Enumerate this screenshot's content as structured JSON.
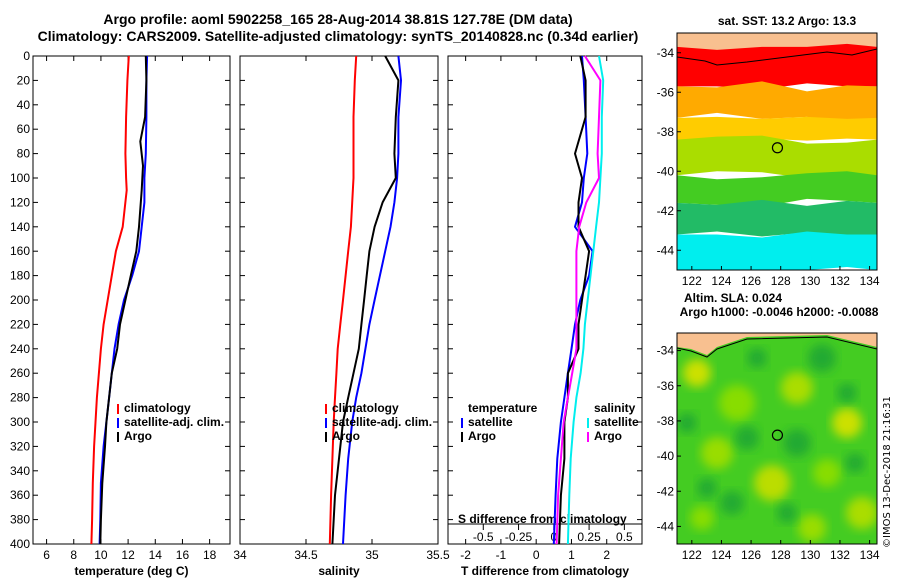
{
  "title": {
    "line1": "Argo profile: aoml 5902258_165 28-Aug-2014 38.81S 127.78E (DM data)",
    "line2": "Climatology: CARS2009. Satellite-adjusted climatology: synTS_20140828.nc (0.34d earlier)"
  },
  "copyright": "©IMOS 13-Dec-2018 21:16:31",
  "colors": {
    "climatology": "#ff0000",
    "satellite": "#0000ff",
    "argo": "#000000",
    "satellite_diff_s": "#00eeee",
    "argo_diff_s": "#ff00ff",
    "land": "#f8c090"
  },
  "chart_data": [
    {
      "type": "line",
      "id": "temperature",
      "xlabel": "temperature (deg C)",
      "ylabel": "",
      "xlim": [
        5,
        19.5
      ],
      "ylim": [
        400,
        0
      ],
      "xticks": [
        6,
        8,
        10,
        12,
        14,
        16,
        18
      ],
      "xtick_labels": [
        "6",
        "8",
        "10",
        "12",
        "14",
        "16",
        "18"
      ],
      "yticks": [
        0,
        20,
        40,
        60,
        80,
        100,
        120,
        140,
        160,
        180,
        200,
        220,
        240,
        260,
        280,
        300,
        320,
        340,
        360,
        380,
        400
      ],
      "ytick_labels": [
        "0",
        "20",
        "40",
        "60",
        "80",
        "100",
        "120",
        "140",
        "160",
        "180",
        "200",
        "220",
        "240",
        "260",
        "280",
        "300",
        "320",
        "340",
        "360",
        "380",
        "400"
      ],
      "legend": [
        "climatology",
        "satellite-adj. clim.",
        "Argo"
      ],
      "legend_position": "lower-right",
      "series": [
        {
          "name": "climatology",
          "color": "#ff0000",
          "x": [
            12.05,
            11.95,
            11.85,
            11.8,
            11.85,
            11.9,
            11.6,
            11.1,
            10.8,
            10.5,
            10.2,
            10.0,
            9.85,
            9.7,
            9.6,
            9.5,
            9.4,
            9.35,
            9.3
          ],
          "y": [
            0,
            20,
            50,
            80,
            100,
            110,
            140,
            160,
            180,
            200,
            220,
            240,
            260,
            280,
            300,
            320,
            350,
            380,
            400
          ]
        },
        {
          "name": "satellite-adj. clim.",
          "color": "#0000ff",
          "x": [
            13.4,
            13.35,
            13.35,
            13.3,
            13.2,
            13.2,
            13.0,
            12.8,
            12.3,
            11.7,
            11.3,
            11.0,
            10.8,
            10.6,
            10.4,
            10.2,
            10.0,
            9.95,
            9.9
          ],
          "y": [
            0,
            20,
            50,
            80,
            100,
            120,
            140,
            160,
            180,
            200,
            220,
            240,
            260,
            280,
            300,
            320,
            350,
            380,
            400
          ]
        },
        {
          "name": "Argo",
          "color": "#000000",
          "x": [
            13.3,
            13.35,
            13.25,
            12.9,
            13.1,
            13.0,
            12.8,
            12.6,
            12.2,
            11.8,
            11.4,
            11.2,
            10.8,
            10.6,
            10.4,
            10.3,
            10.1,
            10.0,
            9.95
          ],
          "y": [
            0,
            20,
            50,
            70,
            90,
            110,
            140,
            160,
            180,
            200,
            220,
            240,
            260,
            280,
            300,
            320,
            350,
            380,
            400
          ]
        }
      ]
    },
    {
      "type": "line",
      "id": "salinity",
      "xlabel": "salinity",
      "ylabel": "",
      "xlim": [
        34,
        35.5
      ],
      "ylim": [
        400,
        0
      ],
      "xticks": [
        34,
        34.5,
        35,
        35.5
      ],
      "xtick_labels": [
        "34",
        "34.5",
        "35",
        "35.5"
      ],
      "legend": [
        "climatology",
        "satellite-adj. clim.",
        "Argo"
      ],
      "legend_position": "lower-right",
      "series": [
        {
          "name": "climatology",
          "color": "#ff0000",
          "x": [
            34.88,
            34.87,
            34.86,
            34.86,
            34.86,
            34.85,
            34.84,
            34.82,
            34.8,
            34.78,
            34.76,
            34.74,
            34.73,
            34.72,
            34.71,
            34.7,
            34.69,
            34.68
          ],
          "y": [
            0,
            20,
            50,
            80,
            100,
            120,
            140,
            160,
            180,
            200,
            220,
            240,
            260,
            280,
            300,
            330,
            360,
            400
          ]
        },
        {
          "name": "satellite-adj. clim.",
          "color": "#0000ff",
          "x": [
            35.2,
            35.22,
            35.2,
            35.2,
            35.19,
            35.17,
            35.14,
            35.1,
            35.06,
            35.02,
            34.98,
            34.95,
            34.92,
            34.88,
            34.85,
            34.82,
            34.8,
            34.78
          ],
          "y": [
            0,
            20,
            50,
            80,
            100,
            120,
            140,
            160,
            180,
            200,
            220,
            240,
            260,
            280,
            300,
            330,
            360,
            400
          ]
        },
        {
          "name": "Argo",
          "color": "#000000",
          "x": [
            35.1,
            35.2,
            35.18,
            35.17,
            35.18,
            35.08,
            35.02,
            34.98,
            34.96,
            34.94,
            34.92,
            34.9,
            34.86,
            34.82,
            34.78,
            34.75,
            34.72,
            34.7
          ],
          "y": [
            0,
            20,
            50,
            80,
            100,
            120,
            140,
            160,
            180,
            200,
            220,
            240,
            260,
            280,
            300,
            330,
            360,
            400
          ]
        }
      ]
    },
    {
      "type": "line",
      "id": "difference",
      "xlabel": "T difference from climatology",
      "xlabel2": "S difference from climatology",
      "xlim": [
        -2.5,
        3
      ],
      "ylim": [
        400,
        0
      ],
      "xticks": [
        -2,
        -1,
        0,
        1,
        2
      ],
      "xtick_labels": [
        "-2",
        "-1",
        "0",
        "1",
        "2"
      ],
      "xticks2": [
        -0.5,
        -0.25,
        0,
        0.25,
        0.5
      ],
      "xtick2_labels": [
        "-0.5",
        "-0.25",
        "0",
        "0.25",
        "0.5"
      ],
      "legend": [
        "temperature",
        "satellite",
        "Argo",
        "salinity",
        "satellite",
        "Argo"
      ],
      "legend_position": "lower",
      "series": [
        {
          "name": "T satellite",
          "color": "#0000ff",
          "x": [
            1.3,
            1.35,
            1.4,
            1.45,
            1.35,
            1.3,
            1.1,
            1.6,
            1.5,
            1.25,
            1.1,
            1.0,
            0.9,
            0.8,
            0.7,
            0.6,
            0.55,
            0.5
          ],
          "y": [
            0,
            20,
            50,
            80,
            100,
            120,
            140,
            160,
            180,
            200,
            220,
            240,
            260,
            280,
            300,
            330,
            360,
            400
          ]
        },
        {
          "name": "T Argo",
          "color": "#000000",
          "x": [
            1.25,
            1.4,
            1.4,
            1.1,
            1.3,
            1.2,
            1.2,
            1.5,
            1.4,
            1.3,
            1.2,
            1.2,
            0.9,
            0.9,
            0.8,
            0.8,
            0.7,
            0.65
          ],
          "y": [
            0,
            20,
            50,
            80,
            100,
            120,
            140,
            160,
            180,
            200,
            220,
            240,
            260,
            280,
            300,
            330,
            360,
            400
          ]
        },
        {
          "name": "S satellite",
          "color": "#00eeee",
          "x": [
            0.32,
            0.35,
            0.34,
            0.34,
            0.33,
            0.32,
            0.3,
            0.28,
            0.26,
            0.24,
            0.22,
            0.21,
            0.19,
            0.16,
            0.14,
            0.12,
            0.11,
            0.1
          ],
          "y": [
            0,
            20,
            50,
            80,
            100,
            120,
            140,
            160,
            180,
            200,
            220,
            240,
            260,
            280,
            300,
            330,
            360,
            400
          ]
        },
        {
          "name": "S Argo",
          "color": "#ff00ff",
          "x": [
            0.22,
            0.33,
            0.32,
            0.31,
            0.32,
            0.23,
            0.18,
            0.16,
            0.16,
            0.16,
            0.16,
            0.16,
            0.13,
            0.1,
            0.07,
            0.05,
            0.03,
            0.02
          ],
          "y": [
            0,
            20,
            50,
            80,
            100,
            120,
            140,
            160,
            180,
            200,
            220,
            240,
            260,
            280,
            300,
            330,
            360,
            400
          ]
        }
      ]
    },
    {
      "type": "heatmap",
      "id": "sst-map",
      "title": "sat. SST: 13.2 Argo: 13.3",
      "xlim": [
        121,
        134.5
      ],
      "ylim": [
        -45,
        -33
      ],
      "xticks": [
        122,
        124,
        126,
        128,
        130,
        132,
        134
      ],
      "xtick_labels": [
        "122",
        "124",
        "126",
        "128",
        "130",
        "132",
        "134"
      ],
      "yticks": [
        -34,
        -36,
        -38,
        -40,
        -42,
        -44
      ],
      "ytick_labels": [
        "-34",
        "-36",
        "-38",
        "-40",
        "-42",
        "-44"
      ],
      "bands": [
        {
          "name": "land",
          "color": "#f8c090",
          "from": -33,
          "to": -34
        },
        {
          "name": "red",
          "color": "#ff0000",
          "from": -33.7,
          "to": -35.7
        },
        {
          "name": "orange",
          "color": "#ffaa00",
          "from": -35.7,
          "to": -37.3
        },
        {
          "name": "yellow",
          "color": "#ffcc00",
          "from": -37.3,
          "to": -38.4
        },
        {
          "name": "yellow-green",
          "color": "#aadd00",
          "from": -38.4,
          "to": -40.2
        },
        {
          "name": "green",
          "color": "#44cc22",
          "from": -40.2,
          "to": -41.6
        },
        {
          "name": "sea-green",
          "color": "#22bb66",
          "from": -41.6,
          "to": -43.2
        },
        {
          "name": "cyan",
          "color": "#00eeee",
          "from": -43.2,
          "to": -45
        }
      ],
      "argo_position": {
        "lon": 127.78,
        "lat": -38.81
      }
    },
    {
      "type": "heatmap",
      "id": "sla-map",
      "title": "Altim. SLA: 0.024",
      "subtitle": "Argo h1000: -0.0046 h2000: -0.0088",
      "xlim": [
        121,
        134.5
      ],
      "ylim": [
        -45,
        -33
      ],
      "xticks": [
        122,
        124,
        126,
        128,
        130,
        132,
        134
      ],
      "xtick_labels": [
        "122",
        "124",
        "126",
        "128",
        "130",
        "132",
        "134"
      ],
      "yticks": [
        -34,
        -36,
        -38,
        -40,
        -42,
        -44
      ],
      "ytick_labels": [
        "-34",
        "-36",
        "-38",
        "-40",
        "-42",
        "-44"
      ],
      "base_color": "#44cc22",
      "argo_position": {
        "lon": 127.78,
        "lat": -38.81
      }
    }
  ]
}
